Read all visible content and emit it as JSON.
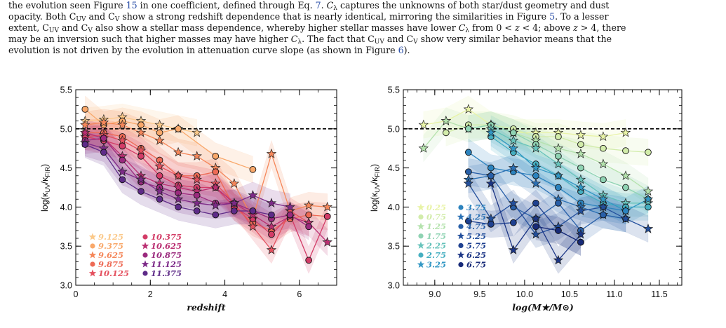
{
  "paragraph": {
    "line1": "the evolution seen Figure 15 in one coefficient, defined through Eq. 7. C_λ captures the unknowns of both star/dust geometry and dust",
    "line2": "opacity. Both C_UV and C_V show a strong redshift dependence that is nearly identical, mirroring the similarities in Figure 5. To a lesser",
    "line3": "extent, C_UV and C_V also show a stellar mass dependence, whereby higher stellar masses have lower C_λ from 0 < z < 4; above z > 4, there",
    "line4": "may be an inversion such that higher masses may have higher C_λ. The fact that C_UV and C_V show very similar behavior means that the",
    "line5": "evolution is not driven by the evolution in attenuation curve slope (as shown in Figure 6)."
  },
  "figure": {
    "left_panel": {
      "xlabel": "redshift",
      "ylabel": "log(κ_UV/κ_FIR)",
      "x_ticks": [
        "0",
        "2",
        "4",
        "6"
      ],
      "y_ticks": [
        "3.0",
        "3.5",
        "4.0",
        "4.5",
        "5.0",
        "5.5"
      ],
      "legend": {
        "col1": [
          "9.125",
          "9.375",
          "9.625",
          "9.875",
          "10.125"
        ],
        "col2": [
          "10.375",
          "10.625",
          "10.875",
          "11.125",
          "11.375"
        ]
      }
    },
    "right_panel": {
      "xlabel": "log(M★/M⊙)",
      "ylabel": "log(κ_UV/κ_FIR)",
      "x_ticks": [
        "9.0",
        "9.5",
        "10.0",
        "10.5",
        "11.0",
        "11.5"
      ],
      "y_ticks": [
        "3.0",
        "3.5",
        "4.0",
        "4.5",
        "5.0",
        "5.5"
      ],
      "legend": {
        "col1": [
          "0.25",
          "0.75",
          "1.25",
          "1.75",
          "2.25",
          "2.75",
          "3.25"
        ],
        "col2": [
          "3.75",
          "4.25",
          "4.75",
          "5.25",
          "5.75",
          "6.25",
          "6.75"
        ]
      }
    }
  },
  "chart_data": [
    {
      "type": "line",
      "xlabel": "redshift",
      "ylabel": "log(κ_UV/κ_FIR)",
      "xlim": [
        0,
        7
      ],
      "ylim": [
        3.0,
        5.5
      ],
      "reference_line": 5.0,
      "series": [
        {
          "name": "9.125",
          "color": "#fbc98a",
          "marker": "star",
          "x": [
            0.25,
            0.75,
            1.25,
            1.75,
            2.25,
            2.75,
            3.25
          ],
          "y": [
            5.1,
            5.12,
            5.15,
            5.1,
            5.05,
            5.0,
            4.95
          ]
        },
        {
          "name": "9.375",
          "color": "#f9a86a",
          "marker": "circle",
          "x": [
            0.25,
            0.75,
            1.25,
            1.75,
            2.25,
            2.75,
            3.75,
            4.75
          ],
          "y": [
            5.25,
            5.05,
            5.1,
            5.05,
            4.95,
            5.0,
            4.65,
            4.48
          ]
        },
        {
          "name": "9.625",
          "color": "#f5875a",
          "marker": "star",
          "x": [
            0.25,
            0.75,
            1.25,
            1.75,
            2.25,
            2.75,
            3.25,
            3.75,
            4.25,
            4.75,
            5.25,
            5.75,
            6.25,
            6.75
          ],
          "y": [
            5.05,
            5.08,
            5.05,
            4.95,
            4.85,
            4.7,
            4.65,
            4.5,
            4.3,
            3.85,
            4.68,
            3.95,
            4.02,
            4.0
          ]
        },
        {
          "name": "9.875",
          "color": "#ee6a55",
          "marker": "circle",
          "x": [
            0.25,
            0.75,
            1.25,
            1.75,
            2.25,
            2.75,
            3.25,
            3.75,
            4.25,
            4.75,
            5.25,
            5.75,
            6.25,
            6.75
          ],
          "y": [
            4.95,
            4.95,
            4.9,
            4.75,
            4.6,
            4.4,
            4.4,
            4.45,
            4.0,
            3.8,
            3.7,
            3.85,
            3.9,
            3.88
          ]
        },
        {
          "name": "10.125",
          "color": "#e4505e",
          "marker": "star",
          "x": [
            0.25,
            0.75,
            1.25,
            1.75,
            2.25,
            2.75,
            3.25,
            3.75,
            4.25,
            4.75,
            5.25,
            5.75,
            6.25
          ],
          "y": [
            4.9,
            4.92,
            4.85,
            4.72,
            4.52,
            4.4,
            4.35,
            4.3,
            4.05,
            3.75,
            3.45,
            3.95,
            3.8
          ]
        },
        {
          "name": "10.375",
          "color": "#d33c67",
          "marker": "circle",
          "x": [
            0.25,
            0.75,
            1.25,
            1.75,
            2.25,
            2.75,
            3.25,
            3.75,
            4.25,
            4.75,
            5.25,
            5.75,
            6.25,
            6.75
          ],
          "y": [
            4.9,
            4.85,
            4.78,
            4.65,
            4.4,
            4.28,
            4.25,
            4.25,
            4.0,
            3.85,
            3.65,
            3.9,
            3.32,
            3.88
          ]
        },
        {
          "name": "10.625",
          "color": "#ba2f72",
          "marker": "star",
          "x": [
            0.25,
            0.75,
            1.25,
            1.75,
            2.25,
            2.75,
            3.25,
            3.75,
            4.25,
            4.75,
            5.25,
            5.75,
            6.25,
            6.75
          ],
          "y": [
            4.95,
            4.88,
            4.65,
            4.4,
            4.3,
            4.25,
            4.2,
            4.25,
            4.05,
            3.9,
            3.75,
            3.88,
            3.8,
            3.55
          ]
        },
        {
          "name": "10.875",
          "color": "#9b2a7e",
          "marker": "circle",
          "x": [
            0.25,
            0.75,
            1.25,
            1.75,
            2.25,
            2.75,
            3.25,
            3.75,
            4.25,
            4.75,
            5.25,
            5.75,
            6.25
          ],
          "y": [
            4.85,
            4.88,
            4.6,
            4.32,
            4.25,
            4.18,
            4.15,
            4.05,
            4.05,
            3.95,
            3.85,
            3.9,
            3.75
          ]
        },
        {
          "name": "11.125",
          "color": "#7d2a88",
          "marker": "star",
          "x": [
            0.25,
            0.75,
            1.25,
            1.75,
            2.25,
            2.75,
            3.25,
            3.75,
            4.25,
            4.75,
            5.25,
            5.75
          ],
          "y": [
            4.82,
            4.75,
            4.45,
            4.35,
            4.2,
            4.1,
            4.05,
            4.02,
            4.05,
            4.15,
            4.05,
            4.0
          ]
        },
        {
          "name": "11.375",
          "color": "#5e2b88",
          "marker": "circle",
          "x": [
            0.25,
            0.75,
            1.25,
            1.75,
            2.25,
            2.75,
            3.25,
            3.75,
            4.25,
            4.75,
            5.25
          ],
          "y": [
            4.8,
            4.7,
            4.35,
            4.2,
            4.1,
            4.0,
            3.95,
            3.9,
            3.95,
            3.95,
            3.9
          ]
        }
      ]
    },
    {
      "type": "line",
      "xlabel": "log(M★/M⊙)",
      "ylabel": "log(κ_UV/κ_FIR)",
      "xlim": [
        8.65,
        11.75
      ],
      "ylim": [
        3.0,
        5.5
      ],
      "reference_line": 5.0,
      "series": [
        {
          "name": "0.25",
          "color": "#e8f3a6",
          "marker": "star",
          "x": [
            8.875,
            9.125,
            9.375,
            9.625,
            9.875,
            10.125,
            10.375,
            10.625,
            10.875,
            11.125
          ],
          "y": [
            5.05,
            5.1,
            5.25,
            5.05,
            4.95,
            4.95,
            4.95,
            4.92,
            4.9,
            4.95
          ]
        },
        {
          "name": "0.75",
          "color": "#d2ecaa",
          "marker": "circle",
          "x": [
            9.125,
            9.375,
            9.625,
            9.875,
            10.125,
            10.375,
            10.625,
            10.875,
            11.125,
            11.375
          ],
          "y": [
            4.95,
            5.05,
            5.05,
            5.0,
            4.9,
            4.9,
            4.8,
            4.75,
            4.72,
            4.7
          ]
        },
        {
          "name": "1.25",
          "color": "#b4e2ad",
          "marker": "star",
          "x": [
            8.875,
            9.125,
            9.375,
            9.625,
            9.875,
            10.125,
            10.375,
            10.625,
            10.875,
            11.125,
            11.375
          ],
          "y": [
            4.75,
            5.1,
            5.0,
            5.05,
            4.95,
            4.85,
            4.75,
            4.68,
            4.55,
            4.4,
            4.2
          ]
        },
        {
          "name": "1.75",
          "color": "#8fd3b3",
          "marker": "circle",
          "x": [
            9.375,
            9.625,
            9.875,
            10.125,
            10.375,
            10.625,
            10.875,
            11.125,
            11.375
          ],
          "y": [
            5.0,
            5.05,
            4.95,
            4.8,
            4.65,
            4.5,
            4.35,
            4.25,
            4.1
          ]
        },
        {
          "name": "2.25",
          "color": "#67c3bb",
          "marker": "star",
          "x": [
            9.625,
            9.875,
            10.125,
            10.375,
            10.625,
            10.875,
            11.125,
            11.375
          ],
          "y": [
            5.0,
            4.85,
            4.75,
            4.55,
            4.35,
            4.15,
            4.05,
            4.05
          ]
        },
        {
          "name": "2.75",
          "color": "#45afc1",
          "marker": "circle",
          "x": [
            9.625,
            9.875,
            10.125,
            10.375,
            10.625,
            10.875,
            11.125,
            11.375
          ],
          "y": [
            4.9,
            4.7,
            4.55,
            4.4,
            4.2,
            4.05,
            4.0,
            4.0
          ]
        },
        {
          "name": "3.25",
          "color": "#3297c4",
          "marker": "star",
          "x": [
            9.625,
            9.875,
            10.125,
            10.375,
            10.625,
            10.875,
            11.125,
            11.375
          ],
          "y": [
            4.95,
            4.75,
            4.5,
            4.4,
            4.25,
            4.1,
            3.95,
            4.1
          ]
        },
        {
          "name": "3.75",
          "color": "#2c83be",
          "marker": "circle",
          "x": [
            9.375,
            9.625,
            9.875,
            10.125,
            10.375,
            10.625,
            10.875,
            11.125
          ],
          "y": [
            4.7,
            4.5,
            4.45,
            4.4,
            4.25,
            4.05,
            4.0,
            3.95
          ]
        },
        {
          "name": "4.25",
          "color": "#2a70b4",
          "marker": "star",
          "x": [
            9.375,
            9.625,
            9.875,
            10.125,
            10.375,
            10.625,
            10.875,
            11.125
          ],
          "y": [
            4.35,
            4.4,
            4.5,
            4.3,
            4.1,
            4.0,
            3.9,
            3.85
          ]
        },
        {
          "name": "4.75",
          "color": "#285fa8",
          "marker": "circle",
          "x": [
            9.375,
            9.625,
            9.875,
            10.125,
            10.375,
            10.625,
            10.875,
            11.125
          ],
          "y": [
            4.45,
            4.4,
            4.0,
            3.85,
            4.05,
            3.7,
            3.9,
            3.85
          ]
        },
        {
          "name": "5.25",
          "color": "#234f9c",
          "marker": "star",
          "x": [
            9.375,
            9.625,
            9.875,
            10.125,
            10.375,
            10.625,
            10.875,
            11.125,
            11.375
          ],
          "y": [
            4.3,
            3.85,
            4.05,
            3.65,
            3.75,
            3.95,
            4.0,
            3.85,
            3.72
          ]
        },
        {
          "name": "5.75",
          "color": "#1f4190",
          "marker": "circle",
          "x": [
            9.375,
            9.625,
            9.875,
            10.125,
            10.375,
            10.625
          ],
          "y": [
            3.82,
            3.78,
            3.8,
            4.05,
            3.7,
            3.55
          ]
        },
        {
          "name": "6.25",
          "color": "#1b3585",
          "marker": "star",
          "x": [
            9.625,
            9.875,
            10.125,
            10.375,
            10.625
          ],
          "y": [
            4.3,
            3.45,
            3.85,
            3.32,
            3.65
          ]
        },
        {
          "name": "6.75",
          "color": "#172a78",
          "marker": "circle",
          "x": [
            10.125,
            10.375,
            10.625
          ],
          "y": [
            3.75,
            3.7,
            3.55
          ]
        }
      ]
    }
  ]
}
